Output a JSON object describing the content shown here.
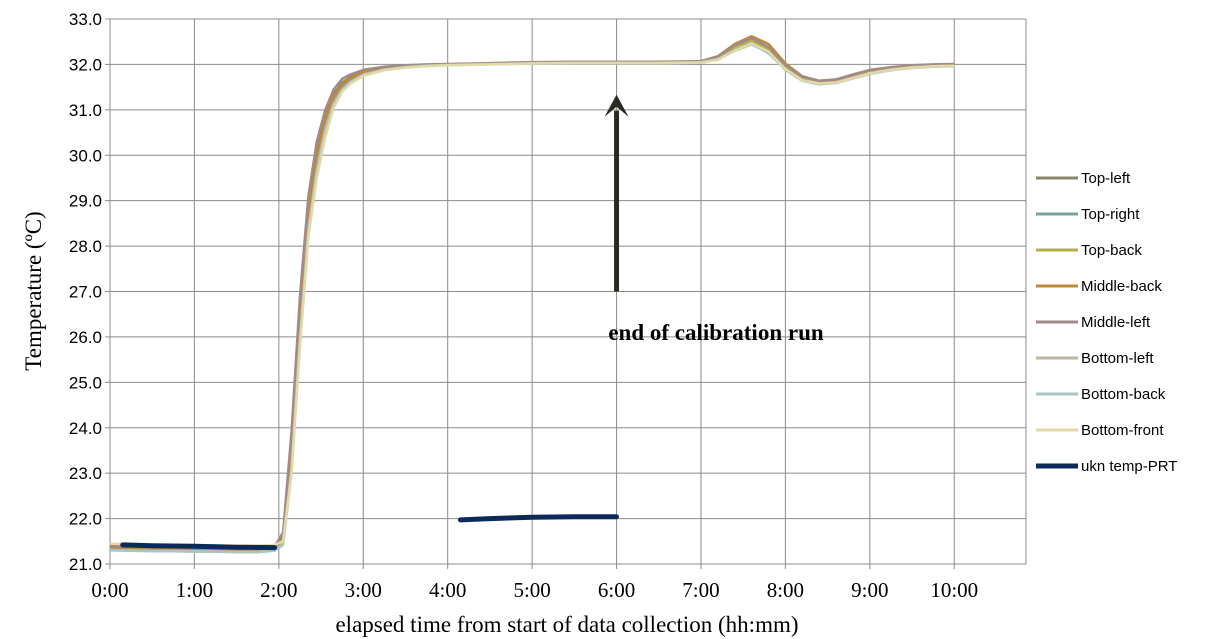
{
  "chart_data": {
    "type": "line",
    "title": "",
    "xlabel": "elapsed time from start of data collection (hh:mm)",
    "ylabel": "Temperature (ºC)",
    "xlim": [
      0,
      10.85
    ],
    "ylim": [
      21.0,
      33.0
    ],
    "x_ticks": [
      0,
      1,
      2,
      3,
      4,
      5,
      6,
      7,
      8,
      9,
      10
    ],
    "x_tick_labels": [
      "0:00",
      "1:00",
      "2:00",
      "3:00",
      "4:00",
      "5:00",
      "6:00",
      "7:00",
      "8:00",
      "9:00",
      "10:00"
    ],
    "y_ticks": [
      21,
      22,
      23,
      24,
      25,
      26,
      27,
      28,
      29,
      30,
      31,
      32,
      33
    ],
    "y_tick_labels": [
      "21.0",
      "22.0",
      "23.0",
      "24.0",
      "25.0",
      "26.0",
      "27.0",
      "28.0",
      "29.0",
      "30.0",
      "31.0",
      "32.0",
      "33.0"
    ],
    "grid": true,
    "legend_position": "right",
    "annotation": {
      "text": "end of calibration  run",
      "x": 6.0,
      "arrow_from_y": 27.0,
      "arrow_to_y": 31.2
    },
    "x": [
      0.0,
      0.25,
      0.5,
      0.75,
      1.0,
      1.25,
      1.5,
      1.75,
      1.95,
      2.05,
      2.15,
      2.25,
      2.35,
      2.45,
      2.55,
      2.65,
      2.75,
      2.85,
      3.0,
      3.25,
      3.5,
      3.75,
      4.0,
      4.5,
      5.0,
      5.5,
      6.0,
      6.5,
      7.0,
      7.2,
      7.4,
      7.6,
      7.8,
      8.0,
      8.2,
      8.4,
      8.6,
      8.8,
      9.0,
      9.25,
      9.5,
      9.75,
      10.0
    ],
    "series": [
      {
        "name": "Top-left",
        "color": "#8b8566",
        "values": [
          21.4,
          21.38,
          21.37,
          21.37,
          21.36,
          21.36,
          21.35,
          21.35,
          21.38,
          21.6,
          23.6,
          26.6,
          28.9,
          30.1,
          30.9,
          31.35,
          31.6,
          31.72,
          31.85,
          31.93,
          31.97,
          31.99,
          32.0,
          32.02,
          32.04,
          32.05,
          32.05,
          32.05,
          32.06,
          32.15,
          32.4,
          32.55,
          32.35,
          31.95,
          31.7,
          31.62,
          31.65,
          31.75,
          31.85,
          31.92,
          31.97,
          31.99,
          32.0
        ]
      },
      {
        "name": "Top-right",
        "color": "#7aa3a0",
        "values": [
          21.33,
          21.32,
          21.31,
          21.31,
          21.3,
          21.3,
          21.29,
          21.29,
          21.32,
          21.5,
          23.3,
          26.3,
          28.6,
          29.9,
          30.7,
          31.2,
          31.5,
          31.65,
          31.8,
          31.9,
          31.95,
          31.98,
          31.99,
          32.01,
          32.03,
          32.04,
          32.04,
          32.04,
          32.05,
          32.12,
          32.3,
          32.45,
          32.25,
          31.9,
          31.66,
          31.58,
          31.6,
          31.7,
          31.8,
          31.88,
          31.93,
          31.96,
          31.97
        ]
      },
      {
        "name": "Top-back",
        "color": "#b5ae4e",
        "values": [
          21.38,
          21.37,
          21.36,
          21.36,
          21.35,
          21.35,
          21.34,
          21.34,
          21.37,
          21.55,
          23.5,
          26.5,
          28.8,
          30.0,
          30.8,
          31.3,
          31.57,
          31.7,
          31.83,
          31.92,
          31.96,
          31.98,
          32.0,
          32.02,
          32.04,
          32.05,
          32.05,
          32.05,
          32.06,
          32.14,
          32.38,
          32.52,
          32.32,
          31.93,
          31.69,
          31.61,
          31.64,
          31.74,
          31.84,
          31.91,
          31.96,
          31.98,
          31.99
        ]
      },
      {
        "name": "Middle-back",
        "color": "#c0883b",
        "values": [
          21.36,
          21.35,
          21.34,
          21.34,
          21.33,
          21.33,
          21.32,
          21.32,
          21.35,
          21.55,
          23.5,
          26.4,
          28.7,
          30.0,
          30.8,
          31.3,
          31.57,
          31.7,
          31.83,
          31.92,
          31.96,
          31.98,
          32.0,
          32.02,
          32.04,
          32.05,
          32.05,
          32.05,
          32.07,
          32.18,
          32.45,
          32.62,
          32.45,
          32.02,
          31.74,
          31.64,
          31.66,
          31.76,
          31.86,
          31.93,
          31.97,
          31.99,
          32.0
        ]
      },
      {
        "name": "Middle-left",
        "color": "#a28a88",
        "values": [
          21.39,
          21.38,
          21.37,
          21.37,
          21.36,
          21.36,
          21.35,
          21.35,
          21.38,
          21.7,
          23.9,
          26.9,
          29.1,
          30.3,
          31.0,
          31.45,
          31.68,
          31.78,
          31.88,
          31.95,
          31.98,
          32.0,
          32.01,
          32.03,
          32.05,
          32.06,
          32.06,
          32.06,
          32.07,
          32.17,
          32.42,
          32.58,
          32.38,
          31.98,
          31.73,
          31.64,
          31.67,
          31.78,
          31.88,
          31.94,
          31.98,
          32.0,
          32.01
        ]
      },
      {
        "name": "Bottom-left",
        "color": "#bfb6a2",
        "values": [
          21.31,
          21.3,
          21.29,
          21.29,
          21.28,
          21.28,
          21.27,
          21.27,
          21.3,
          21.45,
          23.1,
          26.0,
          28.4,
          29.7,
          30.6,
          31.15,
          31.45,
          31.62,
          31.78,
          31.89,
          31.94,
          31.97,
          31.99,
          32.01,
          32.03,
          32.04,
          32.04,
          32.04,
          32.05,
          32.12,
          32.32,
          32.47,
          32.28,
          31.9,
          31.66,
          31.58,
          31.61,
          31.71,
          31.81,
          31.89,
          31.94,
          31.96,
          31.97
        ]
      },
      {
        "name": "Bottom-back",
        "color": "#a9c6c4",
        "values": [
          21.3,
          21.29,
          21.28,
          21.28,
          21.27,
          21.27,
          21.26,
          21.26,
          21.29,
          21.42,
          23.0,
          25.9,
          28.3,
          29.6,
          30.5,
          31.1,
          31.42,
          31.6,
          31.76,
          31.88,
          31.94,
          31.97,
          31.98,
          32.0,
          32.02,
          32.03,
          32.03,
          32.03,
          32.04,
          32.11,
          32.3,
          32.44,
          32.26,
          31.88,
          31.64,
          31.56,
          31.59,
          31.69,
          31.79,
          31.87,
          31.92,
          31.95,
          31.96
        ]
      },
      {
        "name": "Bottom-front",
        "color": "#e1d9a6",
        "values": [
          21.45,
          21.43,
          21.42,
          21.42,
          21.41,
          21.41,
          21.4,
          21.4,
          21.42,
          21.5,
          23.0,
          25.8,
          28.2,
          29.5,
          30.4,
          31.05,
          31.4,
          31.58,
          31.75,
          31.87,
          31.93,
          31.96,
          31.98,
          32.0,
          32.02,
          32.03,
          32.03,
          32.03,
          32.04,
          32.1,
          32.3,
          32.46,
          32.28,
          31.9,
          31.65,
          31.58,
          31.6,
          31.7,
          31.8,
          31.88,
          31.93,
          31.96,
          31.97
        ]
      },
      {
        "name": "ukn temp-PRT",
        "color": "#0b2a5a",
        "thick": true,
        "segments": [
          {
            "x": [
              0.15,
              0.5,
              1.0,
              1.5,
              1.95
            ],
            "values": [
              21.42,
              21.4,
              21.39,
              21.37,
              21.36
            ]
          },
          {
            "x": [
              4.15,
              4.5,
              5.0,
              5.5,
              6.0
            ],
            "values": [
              21.97,
              22.0,
              22.03,
              22.04,
              22.04
            ]
          }
        ]
      }
    ]
  }
}
